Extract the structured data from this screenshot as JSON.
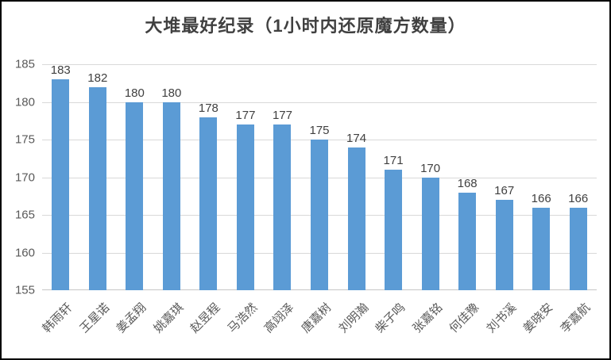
{
  "chart_data": {
    "type": "bar",
    "title": "大堆最好纪录（1小时内还原魔方数量）",
    "categories": [
      "韩雨轩",
      "王星诺",
      "姜孟翔",
      "姚嘉琪",
      "赵昱程",
      "马浩然",
      "高翊泽",
      "唐嘉树",
      "刘明瀚",
      "柴子鸣",
      "张嘉铭",
      "何佳豫",
      "刘书溪",
      "姜晓安",
      "李嘉航"
    ],
    "values": [
      183,
      182,
      180,
      180,
      178,
      177,
      177,
      175,
      174,
      171,
      170,
      168,
      167,
      166,
      166
    ],
    "xlabel": "",
    "ylabel": "",
    "ylim": [
      155,
      185
    ],
    "yticks": [
      155,
      160,
      165,
      170,
      175,
      180,
      185
    ],
    "grid": true,
    "legend_position": "none",
    "data_labels": true,
    "colors": {
      "bar": "#5B9BD5",
      "title_text": "#404040",
      "axis_text": "#595959",
      "data_label_text": "#404040",
      "gridline": "#D9D9D9",
      "axis_line": "#C6C6C6",
      "frame_border": "#000000",
      "background": "#FFFFFF"
    }
  }
}
